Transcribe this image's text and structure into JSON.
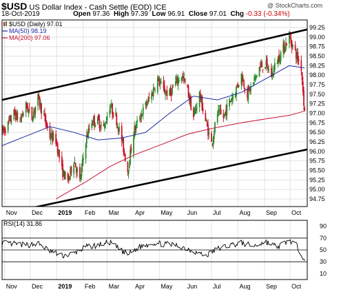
{
  "header": {
    "symbol": "$USD",
    "name": "US Dollar Index - Cash Settle (EOD)",
    "exchange": "ICE",
    "date": "18-Oct-2019",
    "open_label": "Open",
    "open": "97.36",
    "high_label": "High",
    "high": "97.39",
    "low_label": "Low",
    "low": "96.91",
    "close_label": "Close",
    "close": "97.01",
    "chg_label": "Chg",
    "chg": "-0.33 (-0.34%)",
    "credit": "@ StockCharts.com"
  },
  "colors": {
    "up": "#2a8a2a",
    "down": "#d0102a",
    "ma50": "#1a2aa0",
    "ma200": "#c8102e",
    "grid": "#e2e2e2",
    "trendline": "#000000",
    "rsi": "#000000"
  },
  "chart_data": [
    {
      "type": "candlestick",
      "title": "US Dollar Index - Cash Settle (EOD)",
      "legend": [
        {
          "label": "$USD (Daily) 97.01",
          "color": "#2a8a2a"
        },
        {
          "label": "MA(50) 98.19",
          "color": "#1a2aa0"
        },
        {
          "label": "MA(200) 97.06",
          "color": "#c8102e"
        }
      ],
      "legend_position": "top-left",
      "ylim": [
        94.55,
        99.45
      ],
      "y_ticks": [
        "94.75",
        "95.00",
        "95.25",
        "95.50",
        "95.75",
        "96.00",
        "96.25",
        "96.50",
        "96.75",
        "97.00",
        "97.25",
        "97.50",
        "97.75",
        "98.00",
        "98.25",
        "98.50",
        "98.75",
        "99.00",
        "99.25"
      ],
      "x_ticks": [
        "Nov",
        "Dec",
        "2019",
        "Feb",
        "Mar",
        "Apr",
        "May",
        "Jun",
        "Jul",
        "Aug",
        "Sep",
        "Oct"
      ],
      "x_range": [
        "2018-10-29",
        "2019-10-21"
      ],
      "grid": true,
      "price_series": [
        [
          "2018-10-29",
          96.5
        ],
        [
          "2018-11-05",
          96.7
        ],
        [
          "2018-11-12",
          97.0
        ],
        [
          "2018-11-19",
          96.8
        ],
        [
          "2018-11-26",
          97.2
        ],
        [
          "2018-12-03",
          96.9
        ],
        [
          "2018-12-10",
          97.4
        ],
        [
          "2018-12-17",
          96.9
        ],
        [
          "2018-12-24",
          96.4
        ],
        [
          "2018-12-31",
          96.3
        ],
        [
          "2019-01-07",
          95.5
        ],
        [
          "2019-01-14",
          95.2
        ],
        [
          "2019-01-21",
          95.8
        ],
        [
          "2019-01-28",
          95.2
        ],
        [
          "2019-02-04",
          96.3
        ],
        [
          "2019-02-11",
          96.8
        ],
        [
          "2019-02-18",
          96.8
        ],
        [
          "2019-02-25",
          96.6
        ],
        [
          "2019-03-04",
          97.2
        ],
        [
          "2019-03-11",
          96.9
        ],
        [
          "2019-03-18",
          96.3
        ],
        [
          "2019-03-25",
          95.5
        ],
        [
          "2019-04-01",
          96.5
        ],
        [
          "2019-04-08",
          96.9
        ],
        [
          "2019-04-15",
          97.2
        ],
        [
          "2019-04-22",
          97.5
        ],
        [
          "2019-04-29",
          97.9
        ],
        [
          "2019-05-06",
          97.6
        ],
        [
          "2019-05-13",
          97.5
        ],
        [
          "2019-05-20",
          97.8
        ],
        [
          "2019-05-27",
          98.0
        ],
        [
          "2019-06-03",
          97.6
        ],
        [
          "2019-06-10",
          96.9
        ],
        [
          "2019-06-17",
          97.5
        ],
        [
          "2019-06-24",
          96.8
        ],
        [
          "2019-07-01",
          96.2
        ],
        [
          "2019-07-08",
          97.0
        ],
        [
          "2019-07-15",
          96.9
        ],
        [
          "2019-07-22",
          97.3
        ],
        [
          "2019-07-29",
          97.6
        ],
        [
          "2019-08-05",
          98.0
        ],
        [
          "2019-08-12",
          97.5
        ],
        [
          "2019-08-19",
          97.8
        ],
        [
          "2019-08-26",
          98.2
        ],
        [
          "2019-09-02",
          98.3
        ],
        [
          "2019-09-09",
          98.0
        ],
        [
          "2019-09-16",
          98.4
        ],
        [
          "2019-09-23",
          98.7
        ],
        [
          "2019-09-30",
          99.0
        ],
        [
          "2019-10-07",
          98.6
        ],
        [
          "2019-10-14",
          98.2
        ],
        [
          "2019-10-18",
          97.01
        ]
      ],
      "ma50_series": [
        [
          "2018-10-29",
          96.15
        ],
        [
          "2018-11-26",
          96.4
        ],
        [
          "2018-12-24",
          96.65
        ],
        [
          "2019-01-21",
          96.5
        ],
        [
          "2019-02-18",
          96.3
        ],
        [
          "2019-03-18",
          96.35
        ],
        [
          "2019-04-15",
          96.5
        ],
        [
          "2019-05-13",
          97.0
        ],
        [
          "2019-06-10",
          97.45
        ],
        [
          "2019-07-08",
          97.35
        ],
        [
          "2019-08-05",
          97.55
        ],
        [
          "2019-09-02",
          97.9
        ],
        [
          "2019-09-30",
          98.25
        ],
        [
          "2019-10-18",
          98.19
        ]
      ],
      "ma200_series": [
        [
          "2018-12-31",
          94.75
        ],
        [
          "2019-02-04",
          95.2
        ],
        [
          "2019-03-04",
          95.6
        ],
        [
          "2019-04-01",
          95.9
        ],
        [
          "2019-05-06",
          96.2
        ],
        [
          "2019-06-03",
          96.45
        ],
        [
          "2019-07-01",
          96.6
        ],
        [
          "2019-08-05",
          96.75
        ],
        [
          "2019-09-02",
          96.85
        ],
        [
          "2019-10-01",
          96.95
        ],
        [
          "2019-10-18",
          97.06
        ]
      ],
      "channel_upper": [
        [
          "2018-10-29",
          97.35
        ],
        [
          "2019-10-21",
          99.2
        ]
      ],
      "channel_lower": [
        [
          "2018-10-29",
          94.35
        ],
        [
          "2019-10-21",
          96.05
        ]
      ]
    },
    {
      "type": "line",
      "legend": [
        {
          "label": "RSI(14) 31.86",
          "color": "#000000"
        }
      ],
      "ylim": [
        0,
        100
      ],
      "y_ticks": [
        "10",
        "30",
        "50",
        "70",
        "90"
      ],
      "reference_lines": [
        30,
        50,
        70
      ],
      "x_ticks": [
        "Nov",
        "Dec",
        "2019",
        "Feb",
        "Mar",
        "Apr",
        "May",
        "Jun",
        "Jul",
        "Aug",
        "Sep",
        "Oct"
      ],
      "series": [
        [
          "2018-10-29",
          62
        ],
        [
          "2018-11-12",
          60
        ],
        [
          "2018-11-26",
          58
        ],
        [
          "2018-12-10",
          61
        ],
        [
          "2018-12-24",
          48
        ],
        [
          "2019-01-07",
          40
        ],
        [
          "2019-01-21",
          44
        ],
        [
          "2019-02-04",
          55
        ],
        [
          "2019-02-18",
          58
        ],
        [
          "2019-03-04",
          63
        ],
        [
          "2019-03-18",
          48
        ],
        [
          "2019-03-25",
          42
        ],
        [
          "2019-04-08",
          55
        ],
        [
          "2019-04-22",
          62
        ],
        [
          "2019-05-06",
          60
        ],
        [
          "2019-05-20",
          58
        ],
        [
          "2019-06-03",
          52
        ],
        [
          "2019-06-17",
          44
        ],
        [
          "2019-06-24",
          40
        ],
        [
          "2019-07-08",
          52
        ],
        [
          "2019-07-22",
          58
        ],
        [
          "2019-08-05",
          62
        ],
        [
          "2019-08-19",
          56
        ],
        [
          "2019-09-02",
          64
        ],
        [
          "2019-09-16",
          55
        ],
        [
          "2019-09-30",
          66
        ],
        [
          "2019-10-07",
          60
        ],
        [
          "2019-10-14",
          45
        ],
        [
          "2019-10-18",
          31.86
        ]
      ]
    }
  ]
}
